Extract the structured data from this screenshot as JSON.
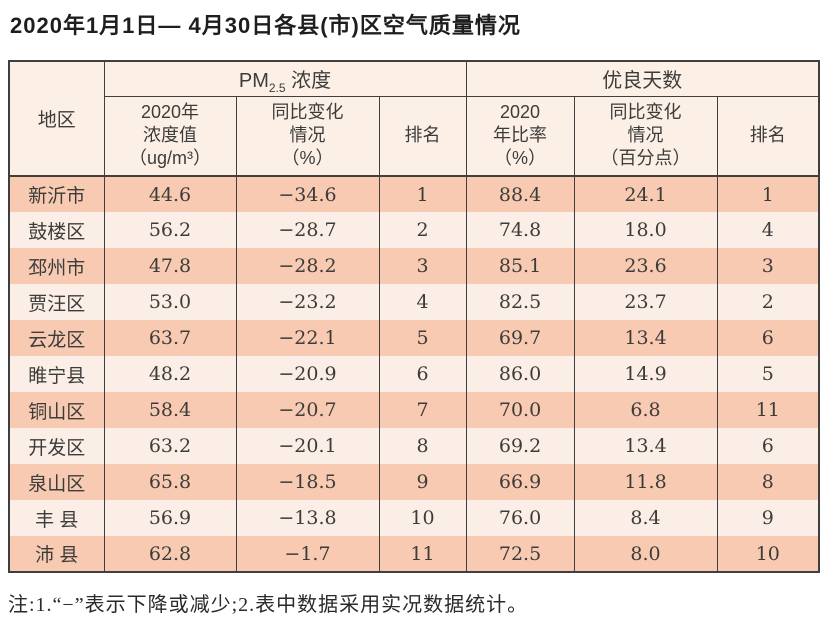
{
  "title": "2020年1月1日— 4月30日各县(市)区空气质量情况",
  "colors": {
    "border": "#3f3f3f",
    "row_odd": "#f8cab2",
    "row_even": "#fbeee7",
    "header_bg": "#fcefe6"
  },
  "table": {
    "region_header": "地区",
    "group_pm25": {
      "prefix": "PM",
      "subscript": "2.5",
      "suffix": " 浓度"
    },
    "group_good_days": "优良天数",
    "sub_headers": {
      "pm_value": "2020年\n浓度值\n（ug/m³）",
      "pm_change": "同比变化\n情况\n（%）",
      "pm_rank": "排名",
      "gd_ratio": "2020\n年比率\n（%）",
      "gd_change": "同比变化\n情况\n（百分点）",
      "gd_rank": "排名"
    },
    "rows": [
      {
        "region": "新沂市",
        "pm_value": "44.6",
        "pm_change": "−34.6",
        "pm_rank": "1",
        "gd_ratio": "88.4",
        "gd_change": "24.1",
        "gd_rank": "1"
      },
      {
        "region": "鼓楼区",
        "pm_value": "56.2",
        "pm_change": "−28.7",
        "pm_rank": "2",
        "gd_ratio": "74.8",
        "gd_change": "18.0",
        "gd_rank": "4"
      },
      {
        "region": "邳州市",
        "pm_value": "47.8",
        "pm_change": "−28.2",
        "pm_rank": "3",
        "gd_ratio": "85.1",
        "gd_change": "23.6",
        "gd_rank": "3"
      },
      {
        "region": "贾汪区",
        "pm_value": "53.0",
        "pm_change": "−23.2",
        "pm_rank": "4",
        "gd_ratio": "82.5",
        "gd_change": "23.7",
        "gd_rank": "2"
      },
      {
        "region": "云龙区",
        "pm_value": "63.7",
        "pm_change": "−22.1",
        "pm_rank": "5",
        "gd_ratio": "69.7",
        "gd_change": "13.4",
        "gd_rank": "6"
      },
      {
        "region": "睢宁县",
        "pm_value": "48.2",
        "pm_change": "−20.9",
        "pm_rank": "6",
        "gd_ratio": "86.0",
        "gd_change": "14.9",
        "gd_rank": "5"
      },
      {
        "region": "铜山区",
        "pm_value": "58.4",
        "pm_change": "−20.7",
        "pm_rank": "7",
        "gd_ratio": "70.0",
        "gd_change": "6.8",
        "gd_rank": "11"
      },
      {
        "region": "开发区",
        "pm_value": "63.2",
        "pm_change": "−20.1",
        "pm_rank": "8",
        "gd_ratio": "69.2",
        "gd_change": "13.4",
        "gd_rank": "6"
      },
      {
        "region": "泉山区",
        "pm_value": "65.8",
        "pm_change": "−18.5",
        "pm_rank": "9",
        "gd_ratio": "66.9",
        "gd_change": "11.8",
        "gd_rank": "8"
      },
      {
        "region": "丰 县",
        "pm_value": "56.9",
        "pm_change": "−13.8",
        "pm_rank": "10",
        "gd_ratio": "76.0",
        "gd_change": "8.4",
        "gd_rank": "9"
      },
      {
        "region": "沛 县",
        "pm_value": "62.8",
        "pm_change": "−1.7",
        "pm_rank": "11",
        "gd_ratio": "72.5",
        "gd_change": "8.0",
        "gd_rank": "10"
      }
    ]
  },
  "footnote": "注:1.“−”表示下降或减少;2.表中数据采用实况数据统计。"
}
